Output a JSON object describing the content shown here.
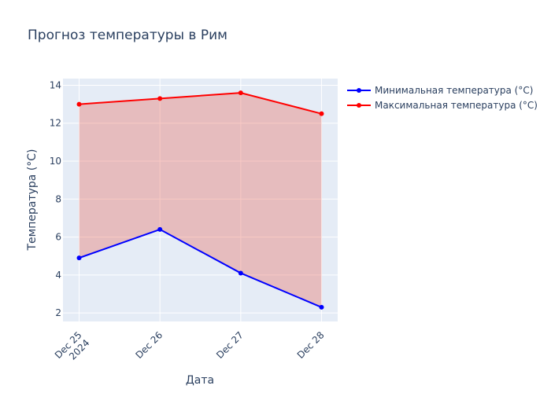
{
  "chart_data": {
    "type": "line",
    "title": "Прогноз температуры в Рим",
    "xlabel": "Дата",
    "ylabel": "Температура (°C)",
    "x": [
      "2024-12-25",
      "2024-12-26",
      "2024-12-27",
      "2024-12-28"
    ],
    "x_tick_labels": [
      [
        "Dec 25",
        "2024"
      ],
      [
        "Dec 26"
      ],
      [
        "Dec 27"
      ],
      [
        "Dec 28"
      ]
    ],
    "ylim": [
      1.55,
      14.35
    ],
    "y_ticks": [
      2,
      4,
      6,
      8,
      10,
      12,
      14
    ],
    "grid": true,
    "legend_position": "top-right",
    "fill_between": true,
    "series": [
      {
        "name": "Минимальная температура (°C)",
        "color": "#0000ff",
        "values": [
          4.9,
          6.4,
          4.1,
          2.3
        ]
      },
      {
        "name": "Максимальная температура (°C)",
        "color": "#ff0000",
        "values": [
          13.0,
          13.3,
          13.6,
          12.5
        ]
      }
    ],
    "fill_color": "rgba(231, 76, 60, 0.3)",
    "plot_bgcolor": "#e5ecf6"
  }
}
